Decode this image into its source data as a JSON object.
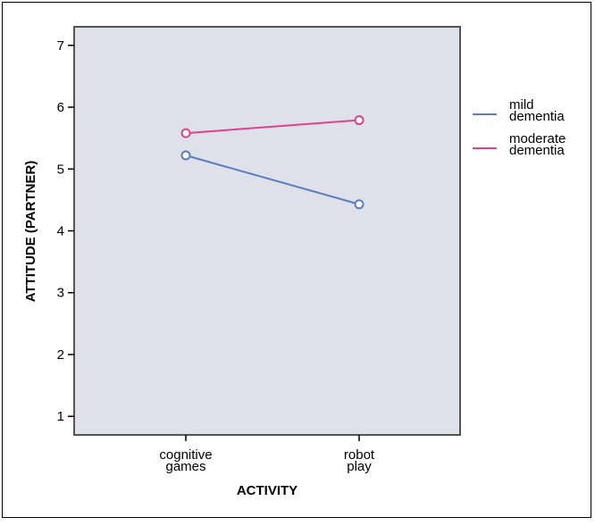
{
  "chart_data": {
    "type": "line",
    "title": "",
    "xlabel": "ACTIVITY",
    "ylabel": "ATTITUDE (PARTNER)",
    "categories": [
      [
        "cognitive",
        "games"
      ],
      [
        "robot",
        "play"
      ]
    ],
    "ylim": [
      0.7,
      7.3
    ],
    "yticks": [
      1,
      2,
      3,
      4,
      5,
      6,
      7
    ],
    "grid": false,
    "legend_position": "right",
    "series": [
      {
        "name": [
          "mild",
          "dementia"
        ],
        "color": "#5b7dbf",
        "values": [
          5.22,
          4.43
        ]
      },
      {
        "name": [
          "moderate",
          "dementia"
        ],
        "color": "#e0418e",
        "values": [
          5.58,
          5.79
        ]
      }
    ],
    "plot_background": "#dfe1ea"
  }
}
